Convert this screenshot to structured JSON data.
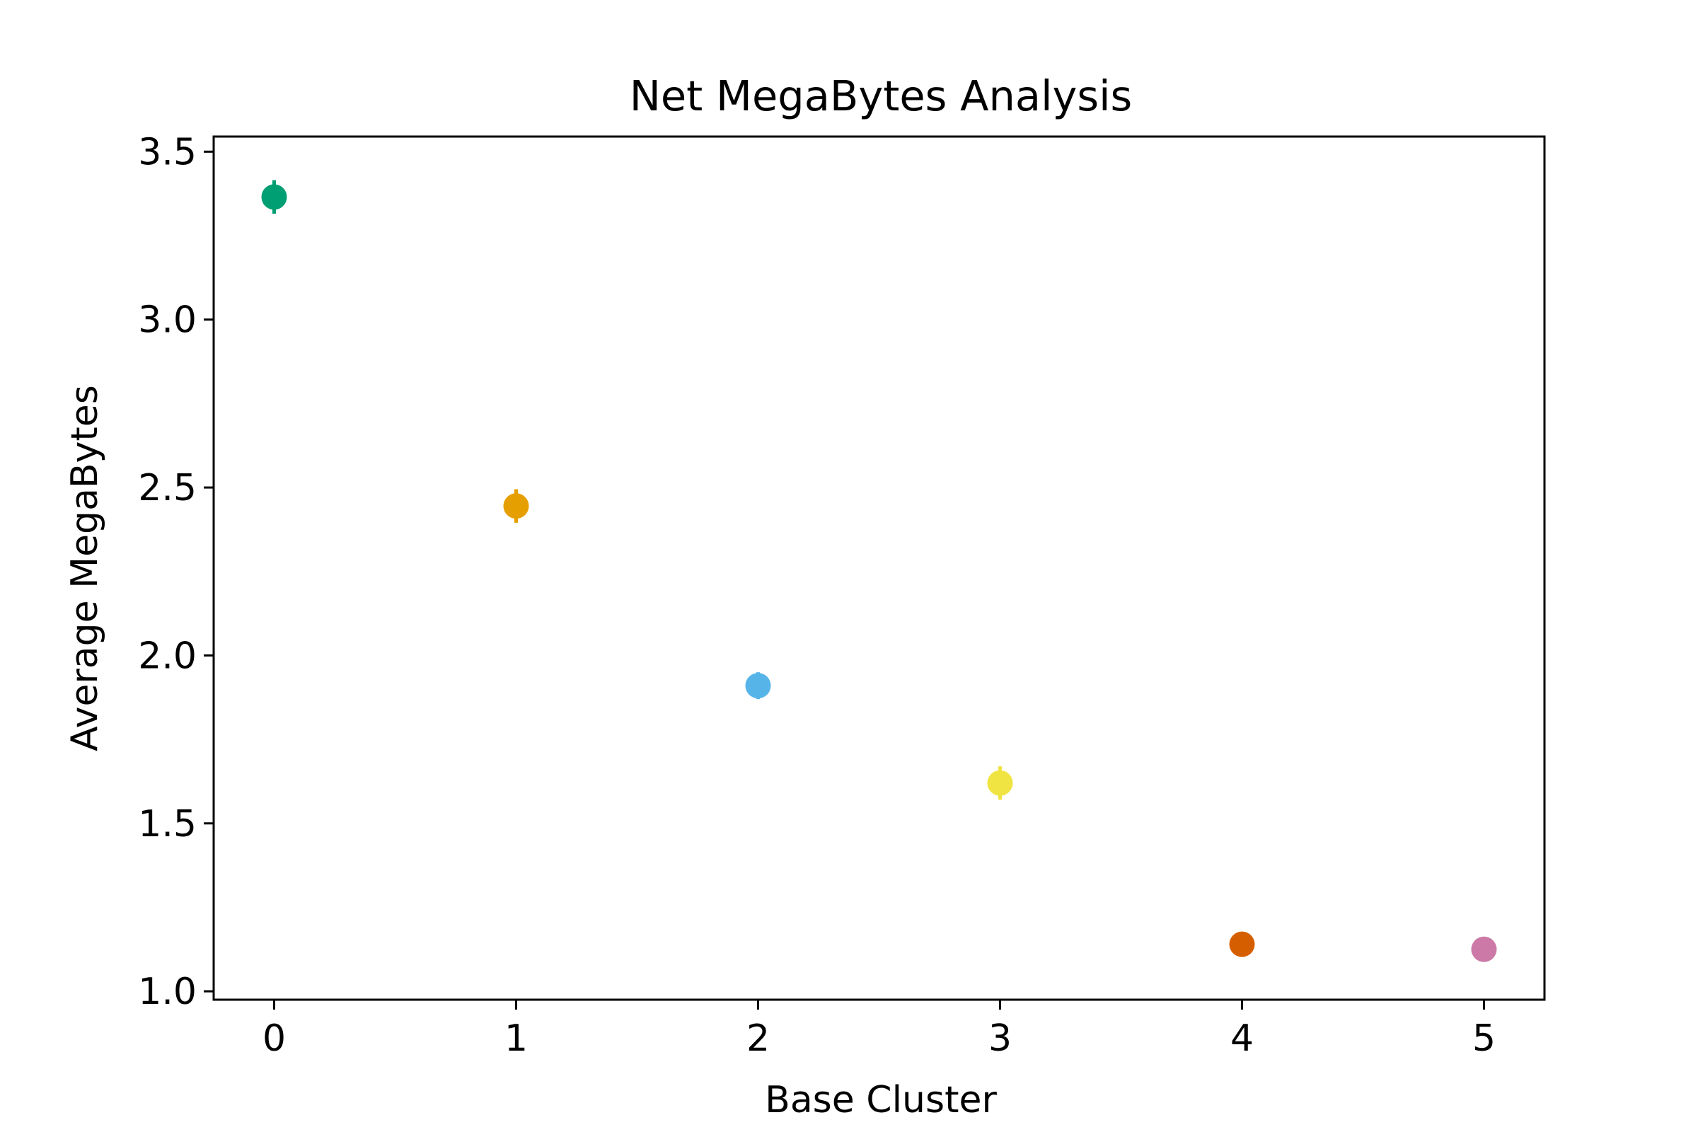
{
  "chart_data": {
    "type": "scatter",
    "title": "Net MegaBytes Analysis",
    "xlabel": "Base Cluster",
    "ylabel": "Average MegaBytes",
    "xlim": [
      -0.25,
      5.25
    ],
    "ylim": [
      0.975,
      3.545
    ],
    "x_ticks": [
      0,
      1,
      2,
      3,
      4,
      5
    ],
    "x_tick_labels": [
      "0",
      "1",
      "2",
      "3",
      "4",
      "5"
    ],
    "y_ticks": [
      1.0,
      1.5,
      2.0,
      2.5,
      3.0,
      3.5
    ],
    "y_tick_labels": [
      "1.0",
      "1.5",
      "2.0",
      "2.5",
      "3.0",
      "3.5"
    ],
    "grid": false,
    "legend": "none",
    "points": [
      {
        "x": 0,
        "y": 3.365,
        "err": 0.05,
        "color": "#009E73"
      },
      {
        "x": 1,
        "y": 2.445,
        "err": 0.05,
        "color": "#E69F00"
      },
      {
        "x": 2,
        "y": 1.91,
        "err": 0.04,
        "color": "#56B4E9"
      },
      {
        "x": 3,
        "y": 1.62,
        "err": 0.05,
        "color": "#F0E442"
      },
      {
        "x": 4,
        "y": 1.14,
        "err": 0.03,
        "color": "#D55E00"
      },
      {
        "x": 5,
        "y": 1.125,
        "err": 0.01,
        "color": "#CC79A7"
      }
    ]
  }
}
